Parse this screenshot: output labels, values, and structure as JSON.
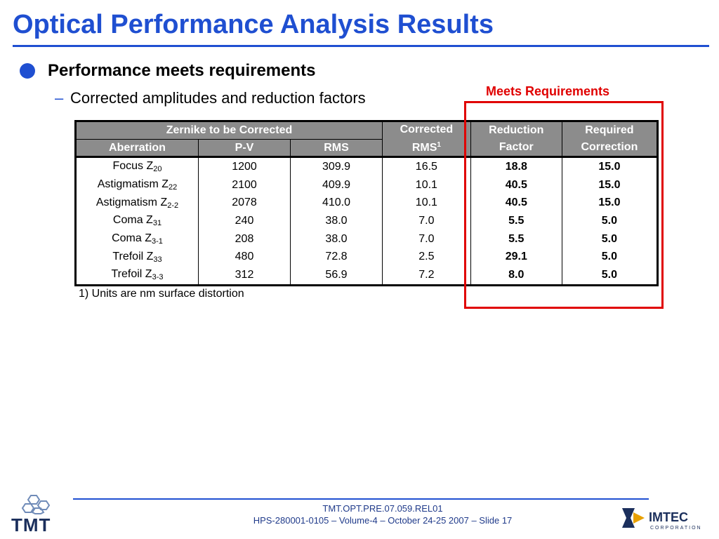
{
  "slide": {
    "title": "Optical Performance Analysis Results",
    "bullet": "Performance meets requirements",
    "subbullet_dash": "–",
    "subbullet": "Corrected amplitudes and reduction factors",
    "highlight_label": "Meets Requirements",
    "footnote": "1) Units are nm surface distortion"
  },
  "table": {
    "group_header": "Zernike to be Corrected",
    "headers": {
      "aberration": "Aberration",
      "pv": "P-V",
      "rms": "RMS",
      "corrected_line1": "Corrected",
      "corrected_line2": "RMS",
      "corrected_sup": "1",
      "reduction_line1": "Reduction",
      "reduction_line2": "Factor",
      "required_line1": "Required",
      "required_line2": "Correction"
    },
    "rows": [
      {
        "name": "Focus Z",
        "sub": "20",
        "pv": "1200",
        "rms": "309.9",
        "corrected": "16.5",
        "reduction": "18.8",
        "required": "15.0"
      },
      {
        "name": "Astigmatism Z",
        "sub": "22",
        "pv": "2100",
        "rms": "409.9",
        "corrected": "10.1",
        "reduction": "40.5",
        "required": "15.0"
      },
      {
        "name": "Astigmatism Z",
        "sub": "2-2",
        "pv": "2078",
        "rms": "410.0",
        "corrected": "10.1",
        "reduction": "40.5",
        "required": "15.0"
      },
      {
        "name": "Coma Z",
        "sub": "31",
        "pv": "240",
        "rms": "38.0",
        "corrected": "7.0",
        "reduction": "5.5",
        "required": "5.0"
      },
      {
        "name": "Coma Z",
        "sub": "3-1",
        "pv": "208",
        "rms": "38.0",
        "corrected": "7.0",
        "reduction": "5.5",
        "required": "5.0"
      },
      {
        "name": "Trefoil Z",
        "sub": "33",
        "pv": "480",
        "rms": "72.8",
        "corrected": "2.5",
        "reduction": "29.1",
        "required": "5.0"
      },
      {
        "name": "Trefoil Z",
        "sub": "3-3",
        "pv": "312",
        "rms": "56.9",
        "corrected": "7.2",
        "reduction": "8.0",
        "required": "5.0"
      }
    ]
  },
  "footer": {
    "line1": "TMT.OPT.PRE.07.059.REL01",
    "line2": "HPS-280001-0105 – Volume-4 – October 24-25 2007 – Slide 17"
  },
  "logos": {
    "left": "TMT",
    "right": "IMTEC",
    "right_sub": "CORPORATION"
  },
  "colors": {
    "title_blue": "#1f4fd1",
    "highlight_red": "#e00000",
    "header_gray": "#8c8c8c"
  }
}
